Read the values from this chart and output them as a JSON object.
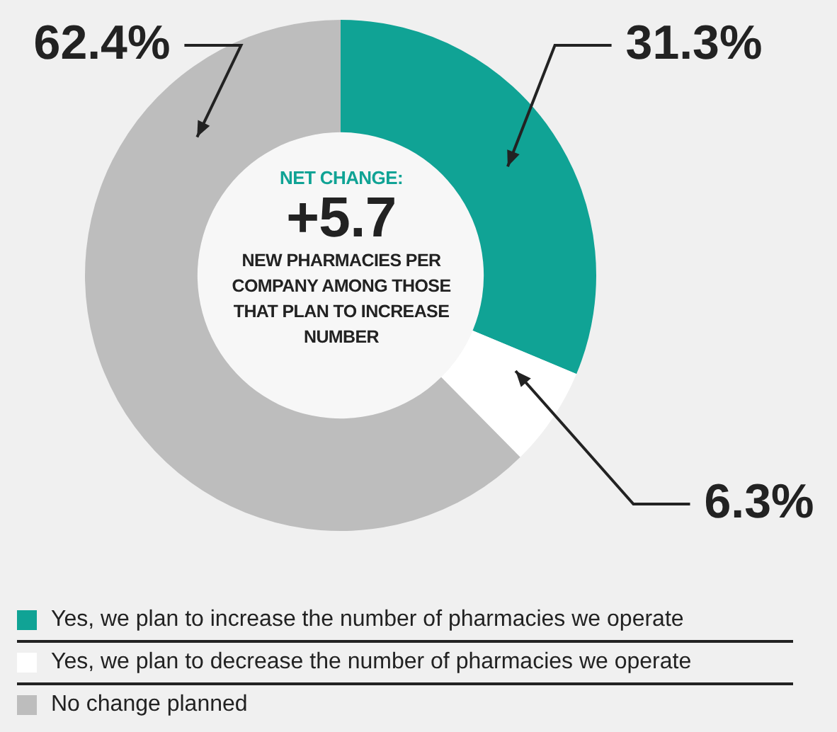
{
  "chart_data": {
    "type": "donut",
    "categories": [
      "Yes, we plan to increase the number of pharmacies we operate",
      "Yes, we plan to decrease the number of pharmacies we operate",
      "No change planned"
    ],
    "values": [
      31.3,
      6.3,
      62.4
    ],
    "colors": [
      "#10a395",
      "#ffffff",
      "#bdbdbd"
    ],
    "value_labels": [
      "31.3%",
      "6.3%",
      "62.4%"
    ],
    "annotations": [
      "NET CHANGE:",
      "+5.7",
      "NEW PHARMACIES PER COMPANY AMONG THOSE THAT PLAN TO INCREASE NUMBER"
    ],
    "legend": "bottom"
  }
}
